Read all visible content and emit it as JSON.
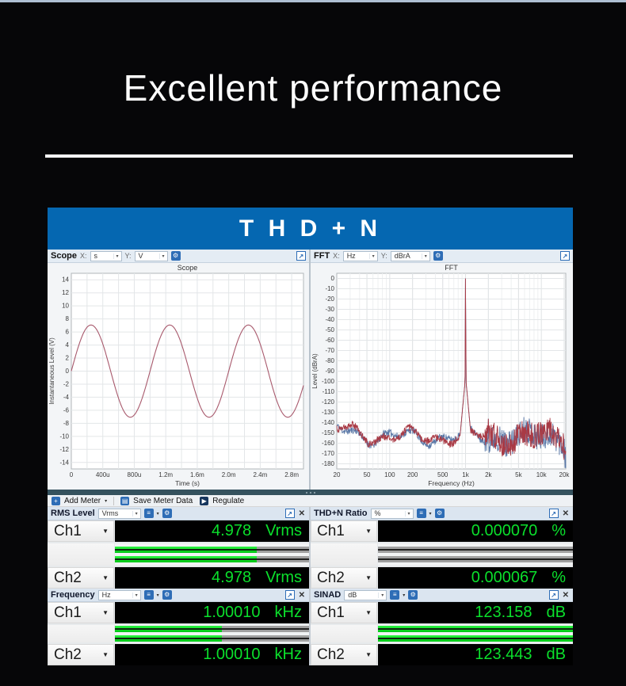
{
  "page": {
    "title": "Excellent performance",
    "banner": "T H D + N",
    "banner_color": "#0567b1",
    "background_color": "#060608",
    "meter_green": "#0be02c"
  },
  "scope_panel": {
    "name": "Scope",
    "x_label": "X:",
    "x_unit": "s",
    "y_label": "Y:",
    "y_unit": "V"
  },
  "fft_panel": {
    "name": "FFT",
    "x_label": "X:",
    "y_label": "Y:",
    "x_unit": "Hz",
    "y_unit": "dBrA"
  },
  "toolbar": {
    "add_meter": "Add Meter",
    "save_meter_data": "Save Meter Data",
    "regulate": "Regulate",
    "add_icon": "+",
    "save_icon": "▤",
    "regulate_icon": "▶"
  },
  "icons": {
    "gear": "⚙",
    "list": "≡",
    "export": "↗",
    "close": "✕",
    "caret": "▾",
    "ch_caret": "▼"
  },
  "chart_data": [
    {
      "type": "line",
      "title": "Scope",
      "xlabel": "Time (s)",
      "ylabel": "Instantaneous Level (V)",
      "xlim": [
        0,
        0.00295
      ],
      "ylim": [
        -15,
        15
      ],
      "grid": true,
      "x_ticks": [
        {
          "v": 0,
          "l": "0"
        },
        {
          "v": 0.0004,
          "l": "400u"
        },
        {
          "v": 0.0008,
          "l": "800u"
        },
        {
          "v": 0.0012,
          "l": "1.2m"
        },
        {
          "v": 0.0016,
          "l": "1.6m"
        },
        {
          "v": 0.002,
          "l": "2.0m"
        },
        {
          "v": 0.0024,
          "l": "2.4m"
        },
        {
          "v": 0.0028,
          "l": "2.8m"
        }
      ],
      "x_grid_step": 0.0002,
      "y_tick_min": -14,
      "y_tick_max": 14,
      "y_tick_step": 2,
      "series": [
        {
          "name": "Ch1",
          "color": "#a8596c",
          "waveform": "sine",
          "amplitude_v": 7.07,
          "frequency_hz": 1000,
          "phase_deg": 0
        }
      ]
    },
    {
      "type": "line",
      "title": "FFT",
      "xlabel": "Frequency (Hz)",
      "ylabel": "Level (dBrA)",
      "xscale": "log",
      "xlim": [
        20,
        21000
      ],
      "ylim": [
        -185,
        5
      ],
      "grid": true,
      "x_ticks": [
        {
          "v": 20,
          "l": "20"
        },
        {
          "v": 50,
          "l": "50"
        },
        {
          "v": 100,
          "l": "100"
        },
        {
          "v": 200,
          "l": "200"
        },
        {
          "v": 500,
          "l": "500"
        },
        {
          "v": 1000,
          "l": "1k"
        },
        {
          "v": 2000,
          "l": "2k"
        },
        {
          "v": 5000,
          "l": "5k"
        },
        {
          "v": 10000,
          "l": "10k"
        },
        {
          "v": 20000,
          "l": "20k"
        }
      ],
      "y_tick_min": -180,
      "y_tick_max": 0,
      "y_tick_step": 10,
      "signal": {
        "fundamental_hz": 1000,
        "peak_db": 0,
        "noise_floor_db": -155,
        "second_harmonic_db": -136
      },
      "series": [
        {
          "name": "Ch2",
          "color": "#5b79a8",
          "seed": 11
        },
        {
          "name": "Ch1",
          "color": "#a93a45",
          "seed": 4
        }
      ]
    }
  ],
  "meters": [
    {
      "title": "RMS Level",
      "unit": "Vrms",
      "channels": [
        {
          "label": "Ch1",
          "value": "4.978",
          "unit": "Vrms",
          "bar_pct": 73
        },
        {
          "label": "Ch2",
          "value": "4.978",
          "unit": "Vrms",
          "bar_pct": 73
        }
      ]
    },
    {
      "title": "THD+N Ratio",
      "unit": "%",
      "channels": [
        {
          "label": "Ch1",
          "value": "0.000070",
          "unit": "%",
          "bar_pct": 0
        },
        {
          "label": "Ch2",
          "value": "0.000067",
          "unit": "%",
          "bar_pct": 0
        }
      ]
    },
    {
      "title": "Frequency",
      "unit": "Hz",
      "channels": [
        {
          "label": "Ch1",
          "value": "1.00010",
          "unit": "kHz",
          "bar_pct": 55
        },
        {
          "label": "Ch2",
          "value": "1.00010",
          "unit": "kHz",
          "bar_pct": 55
        }
      ]
    },
    {
      "title": "SINAD",
      "unit": "dB",
      "channels": [
        {
          "label": "Ch1",
          "value": "123.158",
          "unit": "dB",
          "bar_pct": 100
        },
        {
          "label": "Ch2",
          "value": "123.443",
          "unit": "dB",
          "bar_pct": 100
        }
      ]
    }
  ]
}
